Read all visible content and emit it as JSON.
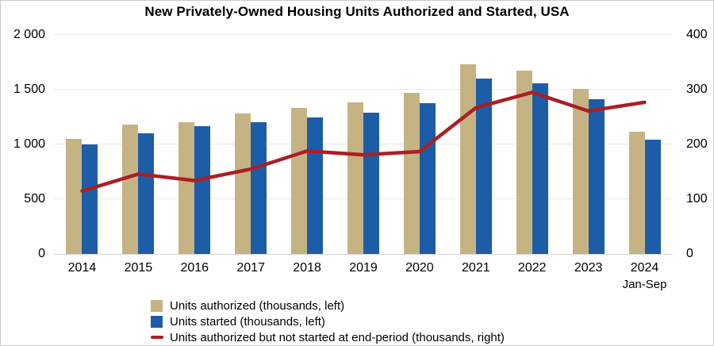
{
  "title": "New Privately-Owned Housing Units Authorized and Started, USA",
  "chart_data": {
    "type": "bar",
    "title": "New Privately-Owned Housing Units Authorized and Started, USA",
    "categories": [
      "2014",
      "2015",
      "2016",
      "2017",
      "2018",
      "2019",
      "2020",
      "2021",
      "2022",
      "2023",
      "2024"
    ],
    "last_category_sublabel": "Jan-Sep",
    "series": [
      {
        "name": "Units authorized (thousands, left)",
        "kind": "bar",
        "axis": "left",
        "color": "#C6B383",
        "values": [
          1050,
          1180,
          1205,
          1280,
          1330,
          1385,
          1470,
          1735,
          1675,
          1505,
          1115
        ]
      },
      {
        "name": "Units started (thousands, left)",
        "kind": "bar",
        "axis": "left",
        "color": "#1D5DA7",
        "values": [
          1000,
          1105,
          1170,
          1200,
          1250,
          1290,
          1380,
          1600,
          1555,
          1415,
          1040
        ]
      },
      {
        "name": "Units authorized but not started at end-period (thousands, right)",
        "kind": "line",
        "axis": "right",
        "color": "#AA1F24",
        "values": [
          115,
          146,
          134,
          155,
          188,
          181,
          187,
          267,
          295,
          261,
          277
        ]
      }
    ],
    "left_axis": {
      "min": 0,
      "max": 2000,
      "tick_labels": [
        "0",
        "500",
        "1 000",
        "1 500",
        "2 000"
      ]
    },
    "right_axis": {
      "min": 0,
      "max": 400,
      "tick_labels": [
        "0",
        "100",
        "200",
        "300",
        "400"
      ]
    },
    "grid": "horizontal",
    "legend_position": "bottom-left"
  }
}
